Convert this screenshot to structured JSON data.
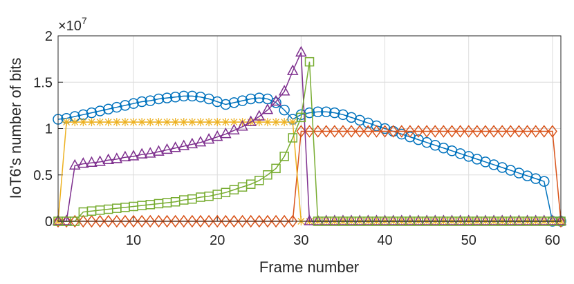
{
  "chart_data": {
    "type": "line",
    "xlabel": "Frame number",
    "ylabel": "IoT6's number of bits",
    "y_exponent": {
      "base": "×10",
      "power": "7"
    },
    "x": [
      1,
      2,
      3,
      4,
      5,
      6,
      7,
      8,
      9,
      10,
      11,
      12,
      13,
      14,
      15,
      16,
      17,
      18,
      19,
      20,
      21,
      22,
      23,
      24,
      25,
      26,
      27,
      28,
      29,
      30,
      31,
      32,
      33,
      34,
      35,
      36,
      37,
      38,
      39,
      40,
      41,
      42,
      43,
      44,
      45,
      46,
      47,
      48,
      49,
      50,
      51,
      52,
      53,
      54,
      55,
      56,
      57,
      58,
      59,
      60,
      61
    ],
    "xlim": [
      1,
      61
    ],
    "xticks": [
      10,
      20,
      30,
      40,
      50,
      60
    ],
    "ylim": [
      0,
      2
    ],
    "yticks": [
      0,
      0.5,
      1,
      1.5,
      2
    ],
    "grid": true,
    "series": [
      {
        "color": "#0072BD",
        "marker": "circle",
        "values": [
          1.1,
          1.11,
          1.13,
          1.15,
          1.17,
          1.19,
          1.21,
          1.23,
          1.25,
          1.27,
          1.29,
          1.3,
          1.32,
          1.33,
          1.34,
          1.35,
          1.35,
          1.34,
          1.32,
          1.29,
          1.26,
          1.28,
          1.3,
          1.32,
          1.33,
          1.32,
          1.28,
          1.2,
          1.1,
          1.15,
          1.17,
          1.18,
          1.18,
          1.17,
          1.15,
          1.12,
          1.09,
          1.06,
          1.03,
          1.0,
          0.97,
          0.94,
          0.91,
          0.88,
          0.85,
          0.82,
          0.79,
          0.76,
          0.73,
          0.7,
          0.67,
          0.64,
          0.61,
          0.58,
          0.55,
          0.52,
          0.49,
          0.46,
          0.43,
          0,
          0
        ]
      },
      {
        "color": "#D95319",
        "marker": "diamond",
        "values": [
          0,
          0,
          0,
          0,
          0,
          0,
          0,
          0,
          0,
          0,
          0,
          0,
          0,
          0,
          0,
          0,
          0,
          0,
          0,
          0,
          0,
          0,
          0,
          0,
          0,
          0,
          0,
          0,
          0,
          0.97,
          0.97,
          0.97,
          0.97,
          0.97,
          0.97,
          0.97,
          0.97,
          0.97,
          0.97,
          0.97,
          0.97,
          0.97,
          0.97,
          0.97,
          0.97,
          0.97,
          0.97,
          0.97,
          0.97,
          0.97,
          0.97,
          0.97,
          0.97,
          0.97,
          0.97,
          0.97,
          0.97,
          0.97,
          0.97,
          0.97,
          0
        ]
      },
      {
        "color": "#EDB120",
        "marker": "asterisk",
        "values": [
          0,
          1.07,
          1.07,
          1.07,
          1.07,
          1.07,
          1.07,
          1.07,
          1.07,
          1.07,
          1.07,
          1.07,
          1.07,
          1.07,
          1.07,
          1.07,
          1.07,
          1.07,
          1.07,
          1.07,
          1.07,
          1.07,
          1.07,
          1.07,
          1.07,
          1.07,
          1.07,
          1.07,
          1.07,
          0,
          0,
          0,
          0,
          0,
          0,
          0,
          0,
          0,
          0,
          0,
          0,
          0,
          0,
          0,
          0,
          0,
          0,
          0,
          0,
          0,
          0,
          0,
          0,
          0,
          0,
          0,
          0,
          0,
          0,
          0,
          0
        ]
      },
      {
        "color": "#7E2F8E",
        "marker": "triangle",
        "values": [
          0,
          0,
          0.6,
          0.62,
          0.63,
          0.64,
          0.66,
          0.67,
          0.69,
          0.7,
          0.72,
          0.73,
          0.75,
          0.77,
          0.79,
          0.81,
          0.83,
          0.85,
          0.88,
          0.91,
          0.94,
          0.98,
          1.02,
          1.07,
          1.13,
          1.2,
          1.29,
          1.4,
          1.62,
          1.82,
          0,
          0,
          0,
          0,
          0,
          0,
          0,
          0,
          0,
          0,
          0,
          0,
          0,
          0,
          0,
          0,
          0,
          0,
          0,
          0,
          0,
          0,
          0,
          0,
          0,
          0,
          0,
          0,
          0,
          0,
          0
        ]
      },
      {
        "color": "#77AC30",
        "marker": "square",
        "values": [
          0,
          0,
          0,
          0.1,
          0.11,
          0.12,
          0.13,
          0.14,
          0.15,
          0.16,
          0.17,
          0.18,
          0.19,
          0.2,
          0.21,
          0.23,
          0.24,
          0.26,
          0.27,
          0.29,
          0.31,
          0.34,
          0.37,
          0.4,
          0.44,
          0.5,
          0.57,
          0.7,
          0.9,
          1.12,
          1.72,
          0,
          0,
          0,
          0,
          0,
          0,
          0,
          0,
          0,
          0,
          0,
          0,
          0,
          0,
          0,
          0,
          0,
          0,
          0,
          0,
          0,
          0,
          0,
          0,
          0,
          0,
          0,
          0,
          0,
          0
        ]
      }
    ]
  }
}
